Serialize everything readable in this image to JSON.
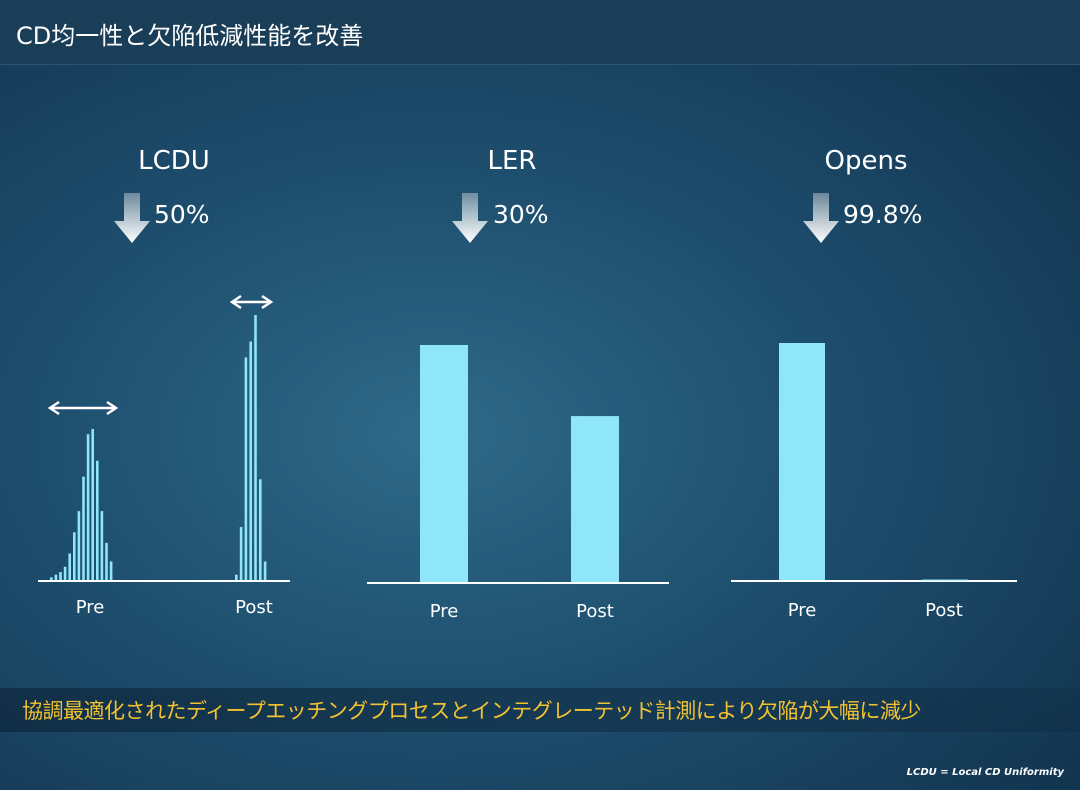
{
  "slide": {
    "title": "CD均一性と欠陥低減性能を改善",
    "conclusion": "協調最適化されたディープエッチングプロセスとインテグレーテッド計測により欠陥が大幅に減少",
    "footnote": "LCDU = Local CD Uniformity"
  },
  "colors": {
    "bar": "#8fe6f8",
    "axis": "#ffffff",
    "conclusion_text": "#f2c230",
    "title_bar": "#1a3e58"
  },
  "chart_data": [
    {
      "type": "histogram",
      "title": "LCDU",
      "reduction": "50%",
      "arrow_icon": "down-arrow-icon",
      "width_marker_icon": "double-arrow-icon",
      "groups": [
        {
          "label": "Pre",
          "relative_heights": [
            0.01,
            0.02,
            0.03,
            0.05,
            0.1,
            0.18,
            0.26,
            0.39,
            0.55,
            0.57,
            0.45,
            0.26,
            0.14,
            0.07
          ]
        },
        {
          "label": "Post",
          "relative_heights": [
            0.02,
            0.2,
            0.84,
            0.9,
            1.0,
            0.38,
            0.07
          ]
        }
      ]
    },
    {
      "type": "bar",
      "title": "LER",
      "reduction": "30%",
      "arrow_icon": "down-arrow-icon",
      "categories": [
        "Pre",
        "Post"
      ],
      "values": [
        1.0,
        0.7
      ]
    },
    {
      "type": "bar",
      "title": "Opens",
      "reduction": "99.8%",
      "arrow_icon": "down-arrow-icon",
      "categories": [
        "Pre",
        "Post"
      ],
      "values": [
        1.0,
        0.002
      ]
    }
  ]
}
